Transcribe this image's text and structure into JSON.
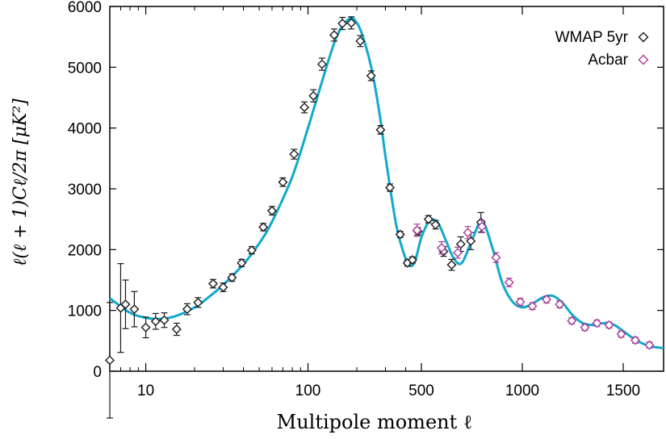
{
  "chart_data": {
    "type": "scatter",
    "title": "",
    "xlabel": "Multipole moment ℓ",
    "ylabel": "ℓ(ℓ + 1)Cℓ/2π [μK²]",
    "x_scale": "mixed: logarithmic for ℓ < 500, linear for ℓ ≥ 500",
    "xlim": [
      6,
      1700
    ],
    "ylim": [
      0,
      6000
    ],
    "x_ticks": [
      10,
      100,
      500,
      1000,
      1500
    ],
    "y_ticks": [
      0,
      1000,
      2000,
      3000,
      4000,
      5000,
      6000
    ],
    "grid": false,
    "legend_position": "top-right",
    "series": [
      {
        "name": "WMAP 5yr",
        "marker": "diamond",
        "color": "#1a1a1a",
        "points": [
          {
            "x": 6,
            "y": 180,
            "err": 950
          },
          {
            "x": 7,
            "y": 1040,
            "err": 730
          },
          {
            "x": 7.5,
            "y": 1100,
            "err": 400
          },
          {
            "x": 8.5,
            "y": 1020,
            "err": 290
          },
          {
            "x": 10,
            "y": 720,
            "err": 170
          },
          {
            "x": 11.5,
            "y": 820,
            "err": 130
          },
          {
            "x": 13,
            "y": 840,
            "err": 120
          },
          {
            "x": 15.5,
            "y": 690,
            "err": 100
          },
          {
            "x": 18,
            "y": 1020,
            "err": 90
          },
          {
            "x": 21,
            "y": 1130,
            "err": 80
          },
          {
            "x": 26,
            "y": 1440,
            "err": 70
          },
          {
            "x": 30,
            "y": 1380,
            "err": 70
          },
          {
            "x": 34,
            "y": 1540,
            "err": 60
          },
          {
            "x": 39,
            "y": 1780,
            "err": 60
          },
          {
            "x": 45,
            "y": 1990,
            "err": 60
          },
          {
            "x": 53,
            "y": 2370,
            "err": 60
          },
          {
            "x": 60,
            "y": 2640,
            "err": 70
          },
          {
            "x": 70,
            "y": 3110,
            "err": 70
          },
          {
            "x": 82,
            "y": 3570,
            "err": 80
          },
          {
            "x": 95,
            "y": 4340,
            "err": 90
          },
          {
            "x": 108,
            "y": 4530,
            "err": 100
          },
          {
            "x": 122,
            "y": 5050,
            "err": 100
          },
          {
            "x": 145,
            "y": 5530,
            "err": 100
          },
          {
            "x": 163,
            "y": 5720,
            "err": 100
          },
          {
            "x": 185,
            "y": 5730,
            "err": 100
          },
          {
            "x": 210,
            "y": 5430,
            "err": 90
          },
          {
            "x": 245,
            "y": 4860,
            "err": 80
          },
          {
            "x": 280,
            "y": 3970,
            "err": 70
          },
          {
            "x": 320,
            "y": 3020,
            "err": 60
          },
          {
            "x": 370,
            "y": 2250,
            "err": 50
          },
          {
            "x": 410,
            "y": 1780,
            "err": 50
          },
          {
            "x": 440,
            "y": 1830,
            "err": 50
          },
          {
            "x": 475,
            "y": 2300,
            "err": 60
          },
          {
            "x": 535,
            "y": 2500,
            "err": 60
          },
          {
            "x": 570,
            "y": 2410,
            "err": 70
          },
          {
            "x": 610,
            "y": 1970,
            "err": 80
          },
          {
            "x": 650,
            "y": 1750,
            "err": 90
          },
          {
            "x": 695,
            "y": 2090,
            "err": 120
          },
          {
            "x": 745,
            "y": 2140,
            "err": 140
          },
          {
            "x": 795,
            "y": 2450,
            "err": 160
          }
        ]
      },
      {
        "name": "Acbar",
        "marker": "diamond",
        "color": "#a63c99",
        "points": [
          {
            "x": 470,
            "y": 2320,
            "err": 100
          },
          {
            "x": 600,
            "y": 2030,
            "err": 100
          },
          {
            "x": 680,
            "y": 1950,
            "err": 90
          },
          {
            "x": 730,
            "y": 2280,
            "err": 100
          },
          {
            "x": 800,
            "y": 2380,
            "err": 100
          },
          {
            "x": 870,
            "y": 1870,
            "err": 80
          },
          {
            "x": 935,
            "y": 1460,
            "err": 70
          },
          {
            "x": 990,
            "y": 1140,
            "err": 60
          },
          {
            "x": 1050,
            "y": 1070,
            "err": 55
          },
          {
            "x": 1120,
            "y": 1180,
            "err": 55
          },
          {
            "x": 1185,
            "y": 1100,
            "err": 55
          },
          {
            "x": 1245,
            "y": 830,
            "err": 50
          },
          {
            "x": 1310,
            "y": 720,
            "err": 50
          },
          {
            "x": 1370,
            "y": 790,
            "err": 50
          },
          {
            "x": 1430,
            "y": 760,
            "err": 50
          },
          {
            "x": 1490,
            "y": 610,
            "err": 50
          },
          {
            "x": 1560,
            "y": 510,
            "err": 50
          },
          {
            "x": 1630,
            "y": 430,
            "err": 50
          }
        ]
      }
    ],
    "model_curve": {
      "color": "#11a9cc",
      "x": [
        6,
        8,
        10,
        12,
        15,
        20,
        25,
        30,
        40,
        50,
        60,
        80,
        100,
        120,
        150,
        180,
        200,
        220,
        250,
        280,
        300,
        350,
        400,
        430,
        460,
        500,
        540,
        580,
        620,
        660,
        700,
        750,
        800,
        850,
        900,
        950,
        1000,
        1050,
        1100,
        1150,
        1200,
        1250,
        1300,
        1350,
        1400,
        1450,
        1500,
        1550,
        1600,
        1650,
        1700
      ],
      "y": [
        1200,
        960,
        880,
        860,
        900,
        1050,
        1240,
        1420,
        1760,
        2100,
        2460,
        3200,
        4000,
        4700,
        5500,
        5800,
        5730,
        5470,
        4900,
        4130,
        3540,
        2400,
        1850,
        1730,
        1830,
        2200,
        2470,
        2450,
        2160,
        1860,
        1780,
        2150,
        2470,
        2050,
        1460,
        1150,
        1050,
        1110,
        1210,
        1240,
        1120,
        920,
        790,
        760,
        790,
        770,
        660,
        540,
        450,
        400,
        380
      ]
    }
  },
  "legend": {
    "items": [
      {
        "label": "WMAP 5yr",
        "color": "#1a1a1a"
      },
      {
        "label": "Acbar",
        "color": "#a63c99"
      }
    ]
  }
}
